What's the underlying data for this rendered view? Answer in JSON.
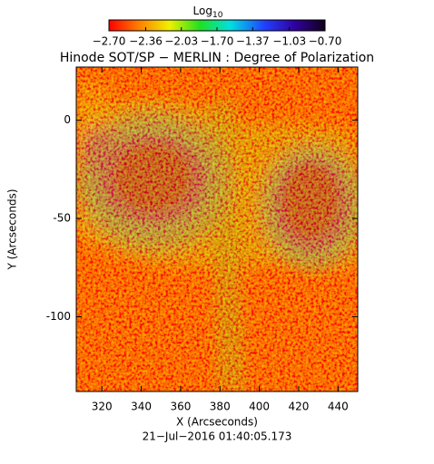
{
  "chart_data": {
    "type": "image",
    "title": "Hinode SOT/SP − MERLIN : Degree of Polarization",
    "colorbar_label": {
      "base": "Log",
      "subscript": "10"
    },
    "colorbar_lim": [
      -2.7,
      -0.7
    ],
    "colorbar_ticks": [
      {
        "value": -2.7,
        "label": "−2.70"
      },
      {
        "value": -2.36,
        "label": "−2.36"
      },
      {
        "value": -2.03,
        "label": "−2.03"
      },
      {
        "value": -1.7,
        "label": "−1.70"
      },
      {
        "value": -1.37,
        "label": "−1.37"
      },
      {
        "value": -1.03,
        "label": "−1.03"
      },
      {
        "value": -0.7,
        "label": "−0.70"
      }
    ],
    "x_label": "X (Arcseconds)",
    "y_label": "Y (Arcseconds)",
    "xlim": [
      307,
      450
    ],
    "ylim": [
      -138,
      27
    ],
    "xticks": [
      320,
      340,
      360,
      380,
      400,
      420,
      440
    ],
    "yticks": [
      -100,
      -50,
      0
    ],
    "annotation": "21−Jul−2016 01:40:05.173"
  }
}
